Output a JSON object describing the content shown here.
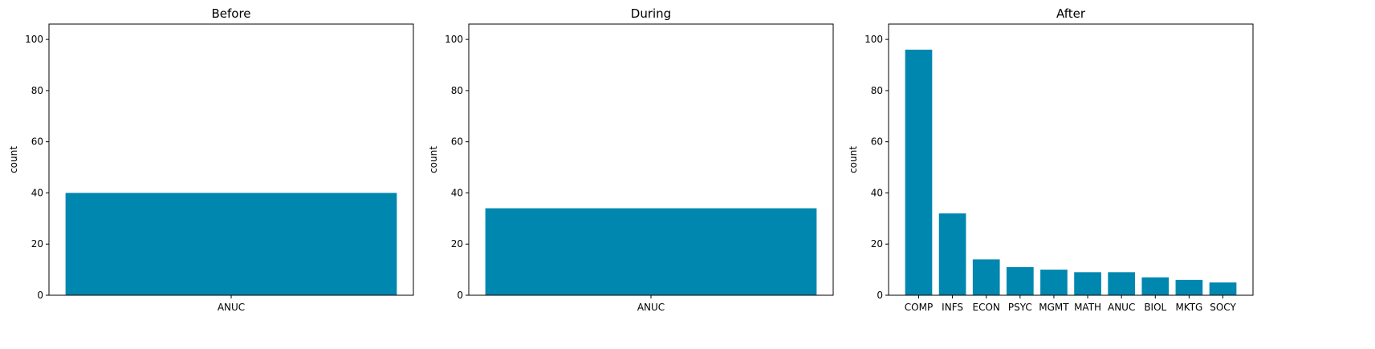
{
  "figure": {
    "bar_color": "#0087b0",
    "axis_color": "#000000",
    "background": "#ffffff"
  },
  "chart_data": [
    {
      "type": "bar",
      "title": "Before",
      "xlabel": "",
      "ylabel": "count",
      "categories": [
        "ANUC"
      ],
      "values": [
        40
      ],
      "ylim": [
        0,
        106
      ],
      "yticks": [
        0,
        20,
        40,
        60,
        80,
        100
      ],
      "grid": false,
      "legend": "none"
    },
    {
      "type": "bar",
      "title": "During",
      "xlabel": "",
      "ylabel": "count",
      "categories": [
        "ANUC"
      ],
      "values": [
        34
      ],
      "ylim": [
        0,
        106
      ],
      "yticks": [
        0,
        20,
        40,
        60,
        80,
        100
      ],
      "grid": false,
      "legend": "none"
    },
    {
      "type": "bar",
      "title": "After",
      "xlabel": "",
      "ylabel": "count",
      "categories": [
        "COMP",
        "INFS",
        "ECON",
        "PSYC",
        "MGMT",
        "MATH",
        "ANUC",
        "BIOL",
        "MKTG",
        "SOCY"
      ],
      "values": [
        96,
        32,
        14,
        11,
        10,
        9,
        9,
        7,
        6,
        5
      ],
      "ylim": [
        0,
        106
      ],
      "yticks": [
        0,
        20,
        40,
        60,
        80,
        100
      ],
      "grid": false,
      "legend": "none"
    }
  ]
}
